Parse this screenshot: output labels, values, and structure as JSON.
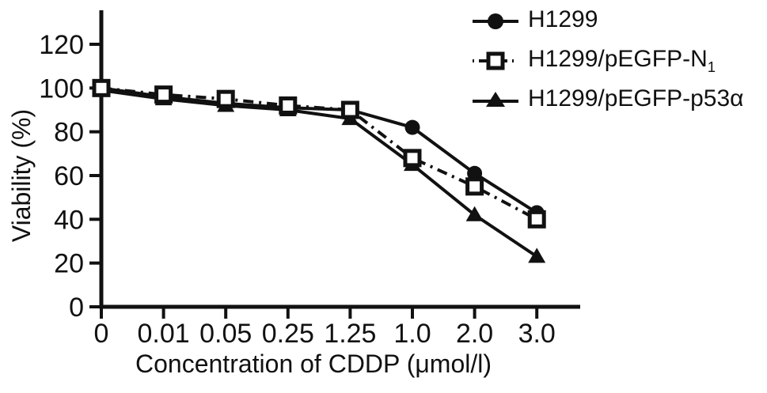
{
  "figure": {
    "background": "#ffffff",
    "ink_color": "#111111"
  },
  "chart_data": {
    "type": "line",
    "title": "",
    "xlabel": "Concentration of CDDP (μmol/l)",
    "ylabel": "Viability (%)",
    "categories": [
      "0",
      "0.01",
      "0.05",
      "0.25",
      "1.25",
      "1.0",
      "2.0",
      "3.0"
    ],
    "yticks": [
      0,
      20,
      40,
      60,
      80,
      100,
      120
    ],
    "ylim": [
      0,
      135
    ],
    "grid": false,
    "legend_position": "top-right",
    "series": [
      {
        "id": "h1299",
        "name": "H1299",
        "label_main": "H1299",
        "label_sub": "",
        "marker": "filled-circle",
        "line_style": "solid",
        "color": "#111111",
        "values": [
          100,
          96,
          93,
          91,
          90,
          82,
          61,
          43
        ]
      },
      {
        "id": "h1299-pegfp-n1",
        "name": "H1299/pEGFP-N1",
        "label_main": "H1299/pEGFP-N",
        "label_sub": "1",
        "marker": "open-square",
        "line_style": "dash-dot",
        "color": "#111111",
        "values": [
          100,
          97,
          95,
          92,
          90,
          68,
          55,
          40
        ]
      },
      {
        "id": "h1299-pegfp-p53a",
        "name": "H1299/pEGFP-p53α",
        "label_main": "H1299/pEGFP-p53α",
        "label_sub": "",
        "marker": "filled-triangle",
        "line_style": "solid",
        "color": "#111111",
        "values": [
          99,
          95,
          92,
          90,
          86,
          65,
          42,
          23
        ]
      }
    ]
  }
}
